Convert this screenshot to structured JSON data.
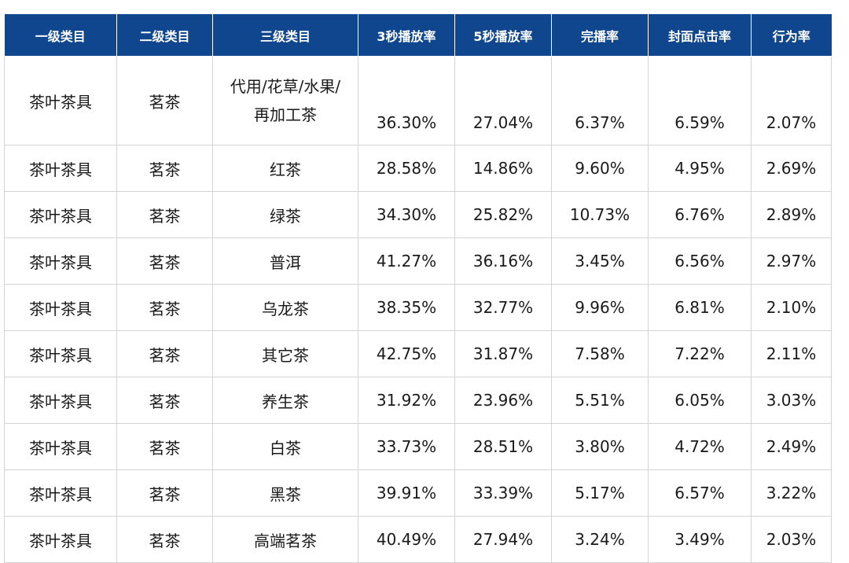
{
  "table": {
    "headers": [
      "一级类目",
      "二级类目",
      "三级类目",
      "3秒播放率",
      "5秒播放率",
      "完播率",
      "封面点击率",
      "行为率"
    ],
    "rows": [
      {
        "cat1": "茶叶茶具",
        "cat2": "茗茶",
        "cat3": [
          "代用/花草/水果/",
          "再加工茶"
        ],
        "play3s": "36.30%",
        "play5s": "27.04%",
        "complete": "6.37%",
        "cover_ctr": "6.59%",
        "action": "2.07%"
      },
      {
        "cat1": "茶叶茶具",
        "cat2": "茗茶",
        "cat3": [
          "红茶"
        ],
        "play3s": "28.58%",
        "play5s": "14.86%",
        "complete": "9.60%",
        "cover_ctr": "4.95%",
        "action": "2.69%"
      },
      {
        "cat1": "茶叶茶具",
        "cat2": "茗茶",
        "cat3": [
          "绿茶"
        ],
        "play3s": "34.30%",
        "play5s": "25.82%",
        "complete": "10.73%",
        "cover_ctr": "6.76%",
        "action": "2.89%"
      },
      {
        "cat1": "茶叶茶具",
        "cat2": "茗茶",
        "cat3": [
          "普洱"
        ],
        "play3s": "41.27%",
        "play5s": "36.16%",
        "complete": "3.45%",
        "cover_ctr": "6.56%",
        "action": "2.97%"
      },
      {
        "cat1": "茶叶茶具",
        "cat2": "茗茶",
        "cat3": [
          "乌龙茶"
        ],
        "play3s": "38.35%",
        "play5s": "32.77%",
        "complete": "9.96%",
        "cover_ctr": "6.81%",
        "action": "2.10%"
      },
      {
        "cat1": "茶叶茶具",
        "cat2": "茗茶",
        "cat3": [
          "其它茶"
        ],
        "play3s": "42.75%",
        "play5s": "31.87%",
        "complete": "7.58%",
        "cover_ctr": "7.22%",
        "action": "2.11%"
      },
      {
        "cat1": "茶叶茶具",
        "cat2": "茗茶",
        "cat3": [
          "养生茶"
        ],
        "play3s": "31.92%",
        "play5s": "23.96%",
        "complete": "5.51%",
        "cover_ctr": "6.05%",
        "action": "3.03%"
      },
      {
        "cat1": "茶叶茶具",
        "cat2": "茗茶",
        "cat3": [
          "白茶"
        ],
        "play3s": "33.73%",
        "play5s": "28.51%",
        "complete": "3.80%",
        "cover_ctr": "4.72%",
        "action": "2.49%"
      },
      {
        "cat1": "茶叶茶具",
        "cat2": "茗茶",
        "cat3": [
          "黑茶"
        ],
        "play3s": "39.91%",
        "play5s": "33.39%",
        "complete": "5.17%",
        "cover_ctr": "6.57%",
        "action": "3.22%"
      },
      {
        "cat1": "茶叶茶具",
        "cat2": "茗茶",
        "cat3": [
          "高端茗茶"
        ],
        "play3s": "40.49%",
        "play5s": "27.94%",
        "complete": "3.24%",
        "cover_ctr": "3.49%",
        "action": "2.03%"
      }
    ]
  },
  "colors": {
    "header_bg": "#10468e",
    "header_text": "#ffffff",
    "grid_line": "#d4d4d4"
  }
}
